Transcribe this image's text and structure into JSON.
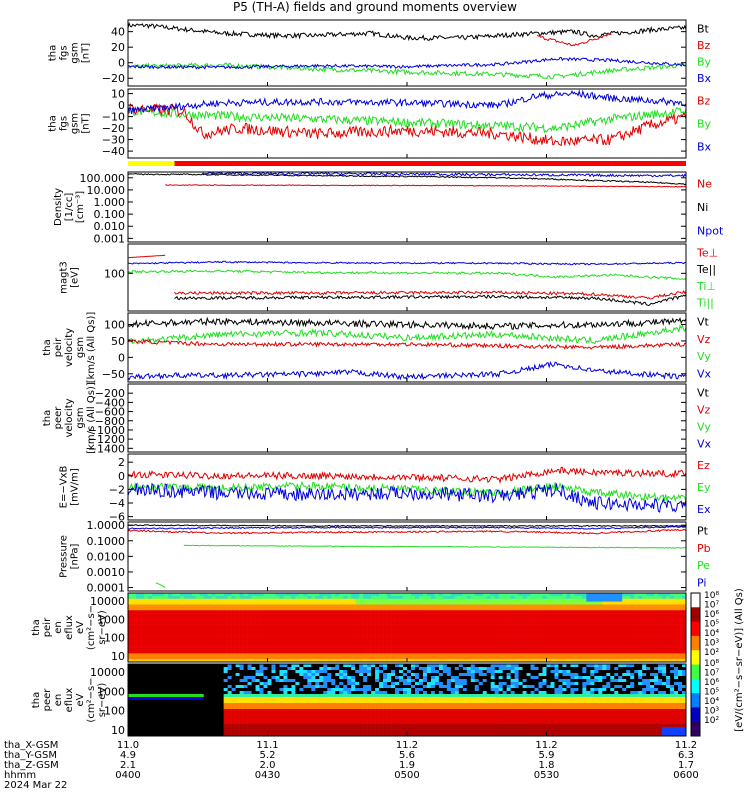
{
  "title": "P5 (TH-A) fields and ground moments overview",
  "colors": {
    "black": "#000000",
    "red": "#e00000",
    "green": "#22dd22",
    "blue": "#0000dd",
    "yellow": "#ffff00",
    "bar_red": "#ff0000",
    "spectrum_bg": "#000000"
  },
  "chart_data": [
    {
      "type": "line",
      "id": "fgs_btot",
      "ylabel": [
        "tha",
        "fgs",
        "gsm",
        "[nT]"
      ],
      "yticks": [
        "40",
        "20",
        "0",
        "−20"
      ],
      "ylim": [
        -30,
        55
      ],
      "legend": [
        {
          "name": "Bt",
          "color": "#000000"
        },
        {
          "name": "Bz",
          "color": "#e00000"
        },
        {
          "name": "By",
          "color": "#22dd22"
        },
        {
          "name": "Bx",
          "color": "#0000dd"
        }
      ],
      "series": [
        {
          "name": "Bt",
          "color": "#000000",
          "x": [
            11.0,
            11.01,
            11.05,
            11.08,
            11.1,
            11.13,
            11.15,
            11.18,
            11.2,
            11.22,
            11.24,
            11.25,
            11.28,
            11.3
          ],
          "y": [
            48,
            48,
            38,
            35,
            35,
            38,
            32,
            32,
            35,
            38,
            40,
            35,
            42,
            45
          ],
          "noise": 3
        },
        {
          "name": "Bz",
          "color": "#e00000",
          "x": [
            11.22,
            11.23,
            11.24,
            11.25,
            11.26
          ],
          "y": [
            34,
            28,
            22,
            30,
            38
          ],
          "noise": 2
        },
        {
          "name": "By",
          "color": "#22dd22",
          "x": [
            11.0,
            11.05,
            11.1,
            11.15,
            11.2,
            11.23,
            11.26,
            11.3
          ],
          "y": [
            -5,
            -3,
            -8,
            -12,
            -15,
            -18,
            -10,
            -3
          ],
          "noise": 3
        },
        {
          "name": "Bx",
          "color": "#0000dd",
          "x": [
            11.0,
            11.05,
            11.1,
            11.15,
            11.2,
            11.23,
            11.26,
            11.3
          ],
          "y": [
            -5,
            -6,
            -4,
            -5,
            -2,
            5,
            3,
            -3
          ],
          "noise": 2
        }
      ]
    },
    {
      "type": "line",
      "id": "fgs_gsm",
      "ylabel": [
        "tha",
        "fgs",
        "gsm",
        "[nT]"
      ],
      "yticks": [
        "10",
        "0",
        "−10",
        "−20",
        "−30",
        "−40"
      ],
      "ylim": [
        -46,
        14
      ],
      "legend": [
        {
          "name": "Bz",
          "color": "#e00000"
        },
        {
          "name": "By",
          "color": "#22dd22"
        },
        {
          "name": "Bx",
          "color": "#0000dd"
        }
      ],
      "series": [
        {
          "name": "By",
          "color": "#22dd22",
          "x": [
            11.0,
            11.03,
            11.06,
            11.1,
            11.15,
            11.2,
            11.23,
            11.26,
            11.3
          ],
          "y": [
            -5,
            -8,
            -10,
            -12,
            -15,
            -18,
            -20,
            -12,
            -5
          ],
          "noise": 4
        },
        {
          "name": "Bz",
          "color": "#e00000",
          "x": [
            11.0,
            11.03,
            11.04,
            11.06,
            11.1,
            11.15,
            11.2,
            11.23,
            11.26,
            11.28,
            11.3
          ],
          "y": [
            -3,
            -5,
            -25,
            -20,
            -25,
            -22,
            -25,
            -32,
            -30,
            -18,
            -10
          ],
          "noise": 5
        },
        {
          "name": "Bx",
          "color": "#0000dd",
          "x": [
            11.0,
            11.05,
            11.1,
            11.15,
            11.2,
            11.22,
            11.24,
            11.26,
            11.3
          ],
          "y": [
            -5,
            2,
            3,
            2,
            0,
            8,
            10,
            6,
            2
          ],
          "noise": 3
        }
      ]
    },
    {
      "type": "line",
      "id": "density",
      "scale": "log",
      "ylabel": [
        "Density",
        "[1/cc]",
        "[cm⁻³]"
      ],
      "yticks": [
        "100.000",
        "10.000",
        "1.000",
        "0.100",
        "0.010",
        "0.001"
      ],
      "ylim": [
        0.0005,
        300
      ],
      "legend": [
        {
          "name": "Ne",
          "color": "#e00000"
        },
        {
          "name": "Ni",
          "color": "#000000"
        },
        {
          "name": "Npot",
          "color": "#0000dd"
        }
      ],
      "series": [
        {
          "name": "Ni",
          "color": "#000000",
          "x": [
            11.0,
            11.05,
            11.1,
            11.15,
            11.2,
            11.25,
            11.3
          ],
          "y": [
            200,
            180,
            150,
            130,
            100,
            60,
            30
          ],
          "noise": 0.05
        },
        {
          "name": "Npot",
          "color": "#0000dd",
          "x": [
            11.04,
            11.1,
            11.15,
            11.2,
            11.25,
            11.3
          ],
          "y": [
            230,
            220,
            200,
            180,
            160,
            150
          ],
          "noise": 0.1
        },
        {
          "name": "Ne",
          "color": "#e00000",
          "x": [
            11.02,
            11.1,
            11.2,
            11.25,
            11.3
          ],
          "y": [
            25,
            24,
            22,
            20,
            18
          ],
          "noise": 0.03
        }
      ]
    },
    {
      "type": "line",
      "id": "temperature",
      "scale": "log",
      "ylabel": [
        "magt3",
        "[eV]"
      ],
      "yticks": [
        "100"
      ],
      "ylim": [
        10,
        600
      ],
      "legend": [
        {
          "name": "Te⊥",
          "color": "#e00000"
        },
        {
          "name": "Te||",
          "color": "#000000"
        },
        {
          "name": "Ti⊥",
          "color": "#22dd22"
        },
        {
          "name": "Ti||",
          "color": "#22dd22"
        }
      ],
      "series": [
        {
          "name": "Tebar",
          "color": "#e00000",
          "x": [
            11.0,
            11.02
          ],
          "y": [
            260,
            300
          ],
          "noise": 0
        },
        {
          "name": "Te||",
          "color": "#0000dd",
          "x": [
            11.0,
            11.05,
            11.1,
            11.2,
            11.25,
            11.3
          ],
          "y": [
            180,
            200,
            190,
            185,
            175,
            190
          ],
          "noise": 0.02
        },
        {
          "name": "Ti⊥",
          "color": "#22dd22",
          "x": [
            11.0,
            11.05,
            11.1,
            11.2,
            11.23,
            11.26,
            11.3
          ],
          "y": [
            110,
            115,
            105,
            100,
            80,
            90,
            70
          ],
          "noise": 0.03
        },
        {
          "name": "Te⊥",
          "color": "#e00000",
          "x": [
            11.025,
            11.1,
            11.2,
            11.25,
            11.28,
            11.3
          ],
          "y": [
            30,
            30,
            31,
            28,
            22,
            32
          ],
          "noise": 0.04
        },
        {
          "name": "Ti||",
          "color": "#000000",
          "x": [
            11.025,
            11.1,
            11.2,
            11.25,
            11.28,
            11.3
          ],
          "y": [
            22,
            23,
            24,
            22,
            15,
            25
          ],
          "noise": 0.04
        }
      ]
    },
    {
      "type": "line",
      "id": "velocity",
      "ylabel": [
        "tha",
        "peir",
        "velocity",
        "gsm",
        "[km/s (All Qs)]"
      ],
      "yticks": [
        "100",
        "50",
        "0",
        "−50"
      ],
      "ylim": [
        -75,
        135
      ],
      "legend": [
        {
          "name": "Vt",
          "color": "#000000"
        },
        {
          "name": "Vz",
          "color": "#e00000"
        },
        {
          "name": "Vy",
          "color": "#22dd22"
        },
        {
          "name": "Vx",
          "color": "#0000dd"
        }
      ],
      "series": [
        {
          "name": "Vt",
          "color": "#000000",
          "x": [
            11.0,
            11.02,
            11.05,
            11.1,
            11.15,
            11.2,
            11.25,
            11.3
          ],
          "y": [
            100,
            105,
            110,
            105,
            100,
            95,
            100,
            110
          ],
          "noise": 10
        },
        {
          "name": "Vy",
          "color": "#22dd22",
          "x": [
            11.0,
            11.02,
            11.05,
            11.1,
            11.15,
            11.2,
            11.25,
            11.3
          ],
          "y": [
            50,
            55,
            70,
            75,
            60,
            70,
            50,
            90
          ],
          "noise": 10
        },
        {
          "name": "Vz",
          "color": "#e00000",
          "x": [
            11.0,
            11.02,
            11.05,
            11.1,
            11.15,
            11.2,
            11.25,
            11.3
          ],
          "y": [
            50,
            45,
            40,
            40,
            40,
            35,
            30,
            40
          ],
          "noise": 6
        },
        {
          "name": "Vx",
          "color": "#0000dd",
          "x": [
            11.0,
            11.02,
            11.05,
            11.1,
            11.12,
            11.15,
            11.2,
            11.23,
            11.25,
            11.3
          ],
          "y": [
            -60,
            -55,
            -55,
            -50,
            -45,
            -60,
            -50,
            -20,
            -40,
            -60
          ],
          "noise": 8
        }
      ]
    },
    {
      "type": "line",
      "id": "peer_velocity",
      "ylabel": [
        "tha",
        "peer",
        "velocity",
        "gsm",
        "[km/s (All Qs)]"
      ],
      "yticks": [
        "−200",
        "−400",
        "−600",
        "−800",
        "−1000",
        "−1200",
        "−1400"
      ],
      "ylim": [
        -1480,
        0
      ],
      "legend": [
        {
          "name": "Vt",
          "color": "#000000"
        },
        {
          "name": "Vz",
          "color": "#e00000"
        },
        {
          "name": "Vy",
          "color": "#22dd22"
        },
        {
          "name": "Vx",
          "color": "#0000dd"
        }
      ],
      "series": []
    },
    {
      "type": "line",
      "id": "efield",
      "ylabel": [
        "E=−VxB",
        "[mV/m]"
      ],
      "yticks": [
        "2",
        "0",
        "−2",
        "−4",
        "−6"
      ],
      "ylim": [
        -6.5,
        3.2
      ],
      "legend": [
        {
          "name": "Ez",
          "color": "#e00000"
        },
        {
          "name": "Ey",
          "color": "#22dd22"
        },
        {
          "name": "Ex",
          "color": "#0000dd"
        }
      ],
      "series": [
        {
          "name": "Ez",
          "color": "#e00000",
          "x": [
            11.0,
            11.05,
            11.1,
            11.15,
            11.2,
            11.23,
            11.25,
            11.3
          ],
          "y": [
            0.2,
            0,
            0,
            -0.2,
            -0.5,
            0.8,
            0.5,
            0.3
          ],
          "noise": 0.5
        },
        {
          "name": "Ey",
          "color": "#22dd22",
          "x": [
            11.0,
            11.05,
            11.1,
            11.15,
            11.2,
            11.23,
            11.25,
            11.3
          ],
          "y": [
            -1.5,
            -1.8,
            -1.5,
            -2.0,
            -2.5,
            -1.5,
            -2.5,
            -3.5
          ],
          "noise": 0.6
        },
        {
          "name": "Ex",
          "color": "#0000dd",
          "x": [
            11.0,
            11.05,
            11.1,
            11.15,
            11.2,
            11.23,
            11.25,
            11.3
          ],
          "y": [
            -2,
            -2.5,
            -2.8,
            -2.5,
            -3,
            -2,
            -4,
            -4.5
          ],
          "noise": 1.0
        }
      ]
    },
    {
      "type": "line",
      "id": "pressure",
      "scale": "log",
      "ylabel": [
        "Pressure",
        "[nPa]"
      ],
      "yticks": [
        "1.0000",
        "0.1000",
        "0.0100",
        "0.0010",
        "0.0001"
      ],
      "ylim": [
        6e-05,
        1.6
      ],
      "legend": [
        {
          "name": "Pt",
          "color": "#000000"
        },
        {
          "name": "Pb",
          "color": "#e00000"
        },
        {
          "name": "Pe",
          "color": "#22dd22"
        },
        {
          "name": "Pi",
          "color": "#0000dd"
        }
      ],
      "series": [
        {
          "name": "Pt",
          "color": "#000000",
          "x": [
            11.0,
            11.1,
            11.2,
            11.3
          ],
          "y": [
            1.0,
            0.9,
            0.9,
            0.9
          ],
          "noise": 0.03
        },
        {
          "name": "Pi",
          "color": "#0000dd",
          "x": [
            11.0,
            11.1,
            11.2,
            11.25,
            11.3
          ],
          "y": [
            0.6,
            0.7,
            0.7,
            0.6,
            0.8
          ],
          "noise": 0.04
        },
        {
          "name": "Pb",
          "color": "#e00000",
          "x": [
            11.0,
            11.05,
            11.1,
            11.2,
            11.25,
            11.3
          ],
          "y": [
            0.45,
            0.3,
            0.35,
            0.4,
            0.3,
            0.5
          ],
          "noise": 0.05
        },
        {
          "name": "Pe",
          "color": "#22dd22",
          "x": [
            11.03,
            11.1,
            11.2,
            11.3
          ],
          "y": [
            0.05,
            0.045,
            0.04,
            0.035
          ],
          "noise": 0.02
        },
        {
          "name": "Pgreen",
          "color": "#22dd22",
          "x": [
            11.015,
            11.02
          ],
          "y": [
            0.0002,
            0.0001
          ],
          "noise": 0
        }
      ]
    },
    {
      "type": "heatmap",
      "id": "peir_spec",
      "ylabel": [
        "tha",
        "peir",
        "en",
        "eflux",
        "eV",
        "(cm²−s−",
        "sr−eV)"
      ],
      "yticks": [
        "10000",
        "1000",
        "100",
        "10"
      ]
    },
    {
      "type": "heatmap",
      "id": "peer_spec",
      "ylabel": [
        "tha",
        "peer",
        "en",
        "eflux",
        "eV",
        "(cm²−s−",
        "sr−eV)"
      ],
      "yticks": [
        "10000",
        "1000",
        "100",
        "10"
      ]
    }
  ],
  "colorbar": {
    "label": "[eV/(cm²−s−sr−eV)] (All Qs)",
    "ticks_top": [
      "10⁸",
      "10⁷",
      "10⁶",
      "10⁵",
      "10⁴",
      "10³",
      "10²"
    ],
    "ticks_bottom": [
      "10⁸",
      "10⁷",
      "10⁶",
      "10⁵",
      "10⁴",
      "10³",
      "10²"
    ]
  },
  "xaxis": {
    "xlim": [
      11.0,
      11.3
    ],
    "ticks": [
      {
        "x": 11.0,
        "rows": [
          "11.0",
          "4.9",
          "2.1",
          "0400"
        ]
      },
      {
        "x": 11.075,
        "rows": [
          "11.1",
          "5.2",
          "2.0",
          "0430"
        ]
      },
      {
        "x": 11.15,
        "rows": [
          "11.2",
          "5.6",
          "1.9",
          "0500"
        ]
      },
      {
        "x": 11.225,
        "rows": [
          "11.2",
          "5.9",
          "1.8",
          "0530"
        ]
      },
      {
        "x": 11.3,
        "rows": [
          "11.2",
          "6.3",
          "1.7",
          "0600"
        ]
      }
    ],
    "row_labels": [
      "tha_X-GSM",
      "tha_Y-GSM",
      "tha_Z-GSM",
      "hhmm"
    ],
    "date": "2024 Mar 22"
  }
}
